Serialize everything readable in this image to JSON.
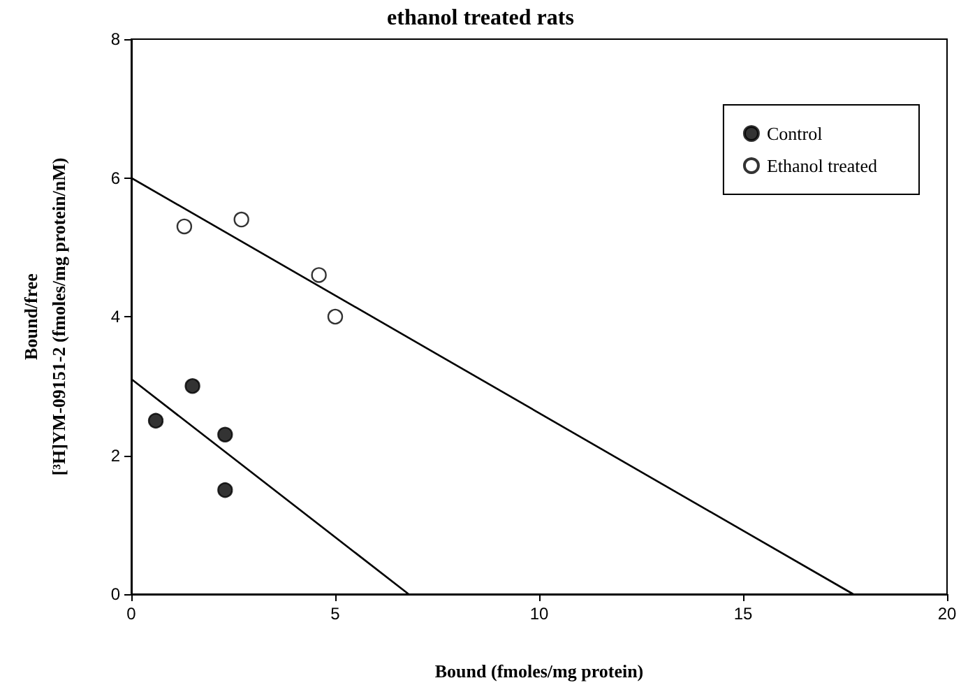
{
  "chart_data": {
    "type": "scatter",
    "title": "ethanol treated rats",
    "xlabel": "Bound (fmoles/mg protein)",
    "ylabel": "Bound/free\n[³H]YM-09151-2 (fmoles/mg protein/nM)",
    "xlim": [
      0,
      20
    ],
    "xticks": [
      0,
      5,
      10,
      15,
      20
    ],
    "ylim": [
      0,
      8
    ],
    "yticks": [
      0,
      2,
      4,
      6,
      8
    ],
    "grid": false,
    "legend": "top right",
    "marker": "circle",
    "series": [
      {
        "name": "Control",
        "color": "#000000",
        "x": [
          0.6,
          1.5,
          2.3,
          2.3
        ],
        "values": [
          2.5,
          3.0,
          2.3,
          1.5
        ]
      },
      {
        "name": "Ethanol treated",
        "color": "#ffffff",
        "x": [
          1.3,
          2.7,
          4.6,
          5.0
        ],
        "values": [
          5.3,
          5.4,
          4.6,
          4.0
        ]
      },
      {
        "type": "line",
        "color": "#000000",
        "marker": "none",
        "x": [
          0,
          6.8
        ],
        "values": [
          3.1,
          0
        ]
      },
      {
        "type": "line",
        "color": "#000000",
        "marker": "none",
        "x": [
          0,
          17.7
        ],
        "values": [
          6.0,
          0
        ]
      }
    ]
  }
}
